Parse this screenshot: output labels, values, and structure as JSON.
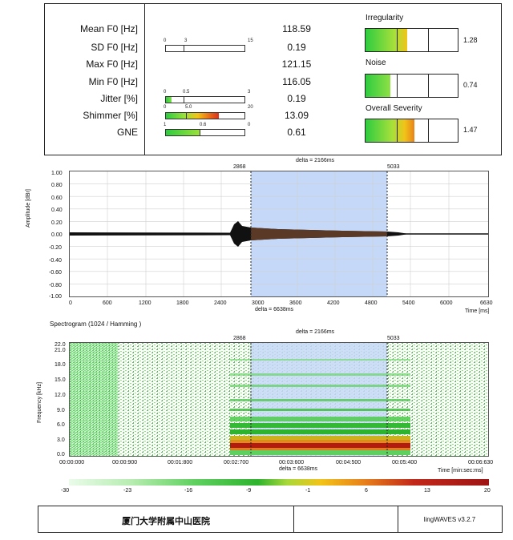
{
  "params": [
    {
      "label": "Mean F0 [Hz]",
      "value": "118.59"
    },
    {
      "label": "SD F0 [Hz]",
      "value": "0.19"
    },
    {
      "label": "Max F0 [Hz]",
      "value": "121.15"
    },
    {
      "label": "Min F0 [Hz]",
      "value": "116.05"
    },
    {
      "label": "Jitter [%]",
      "value": "0.19"
    },
    {
      "label": "Shimmer [%]",
      "value": "13.09"
    },
    {
      "label": "GNE",
      "value": "0.61"
    }
  ],
  "scales": {
    "sd": {
      "min": "0",
      "mid": "3",
      "max": "15"
    },
    "jitter": {
      "min": "0",
      "mid": "0.5",
      "max": "3"
    },
    "shimmer": {
      "min": "0",
      "mid": "5.0",
      "max": "20"
    },
    "gne": {
      "min": "1",
      "mid": "0.6",
      "max": "0"
    }
  },
  "severity": [
    {
      "label": "Irregularity",
      "value": "1.28",
      "level": 1.28
    },
    {
      "label": "Noise",
      "value": "0.74",
      "level": 0.74
    },
    {
      "label": "Overall Severity",
      "value": "1.47",
      "level": 1.47
    }
  ],
  "waveform": {
    "delta_top": "delta = 2166ms",
    "marker_start": "2868",
    "marker_end": "5033",
    "y_axis_label": "Amplitude [dBr]",
    "y_ticks": [
      "1.00",
      "0.80",
      "0.60",
      "0.40",
      "0.20",
      "0.00",
      "-0.20",
      "-0.40",
      "-0.60",
      "-0.80",
      "-1.00"
    ],
    "x_ticks": [
      "0",
      "600",
      "1200",
      "1800",
      "2400",
      "3000",
      "3600",
      "4200",
      "4800",
      "5400",
      "6000",
      "6630"
    ],
    "x_axis_label": "Time [ms]",
    "delta_bottom": "delta = 6638ms"
  },
  "spectrogram": {
    "title": "Spectrogram (1024 / Hamming )",
    "delta_top": "delta = 2166ms",
    "marker_start": "2868",
    "marker_end": "5033",
    "y_axis_label": "Frequency [kHz]",
    "y_ticks": [
      "22.0",
      "21.0",
      "18.0",
      "15.0",
      "12.0",
      "9.0",
      "6.0",
      "3.0",
      "0.0"
    ],
    "x_ticks": [
      "00:00:000",
      "00:00:900",
      "00:01:800",
      "00:02:700",
      "00:03:600",
      "00:04:500",
      "00:05:400",
      "00:06:630"
    ],
    "x_axis_label": "Time [min:sec:ms]",
    "delta_bottom": "delta = 6638ms"
  },
  "color_scale": {
    "ticks": [
      "-30",
      "-23",
      "-16",
      "-9",
      "-1",
      "6",
      "13",
      "20"
    ]
  },
  "footer": {
    "institution": "厦门大学附属中山医院",
    "middle": "",
    "software": "lingWAVES v3.2.7"
  }
}
